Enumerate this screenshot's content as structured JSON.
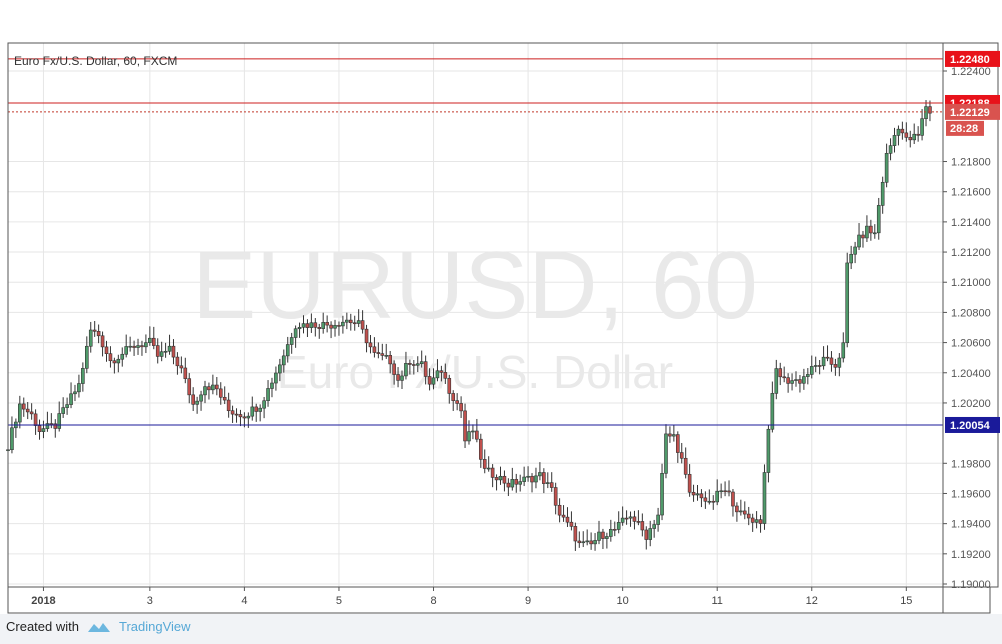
{
  "header": {
    "symbol_title": "Euro Fx/U.S. Dollar, 60, FXCM"
  },
  "watermark": {
    "symbol": "EURUSD, 60",
    "description": "Euro Fx/U.S. Dollar"
  },
  "footer": {
    "created_with": "Created with",
    "brand": "TradingView"
  },
  "colors": {
    "up": "#4f9a6a",
    "down": "#c0504d",
    "resistance": "#cc1f1f",
    "support": "#1a1a9a"
  },
  "chart_data": {
    "type": "candlestick",
    "title": "Euro Fx/U.S. Dollar, 60, FXCM",
    "ylim": [
      1.189,
      1.2258
    ],
    "y_ticks": [
      "1.22400",
      "1.21800",
      "1.21600",
      "1.21400",
      "1.21200",
      "1.21000",
      "1.20800",
      "1.20600",
      "1.20400",
      "1.20200",
      "1.19800",
      "1.19600",
      "1.19400",
      "1.19200",
      "1.19000"
    ],
    "y_tick_values": [
      1.224,
      1.218,
      1.216,
      1.214,
      1.212,
      1.21,
      1.208,
      1.206,
      1.204,
      1.202,
      1.198,
      1.196,
      1.194,
      1.192,
      1.19
    ],
    "x_ticks": [
      {
        "label": "2018",
        "hour": 9
      },
      {
        "label": "3",
        "hour": 36
      },
      {
        "label": "4",
        "hour": 60
      },
      {
        "label": "5",
        "hour": 84
      },
      {
        "label": "8",
        "hour": 108
      },
      {
        "label": "9",
        "hour": 132
      },
      {
        "label": "10",
        "hour": 156
      },
      {
        "label": "11",
        "hour": 180
      },
      {
        "label": "12",
        "hour": 204
      },
      {
        "label": "15",
        "hour": 228
      }
    ],
    "close_path": [
      [
        0,
        1.1992
      ],
      [
        3,
        1.2019
      ],
      [
        6,
        1.2012
      ],
      [
        8,
        1.2002
      ],
      [
        12,
        1.2005
      ],
      [
        14,
        1.2015
      ],
      [
        18,
        1.2032
      ],
      [
        21,
        1.2068
      ],
      [
        23,
        1.2065
      ],
      [
        26,
        1.2048
      ],
      [
        28,
        1.2051
      ],
      [
        32,
        1.2058
      ],
      [
        36,
        1.206
      ],
      [
        38,
        1.2051
      ],
      [
        41,
        1.2055
      ],
      [
        44,
        1.2042
      ],
      [
        47,
        1.2019
      ],
      [
        50,
        1.2032
      ],
      [
        53,
        1.2029
      ],
      [
        56,
        1.2015
      ],
      [
        60,
        1.2012
      ],
      [
        64,
        1.2019
      ],
      [
        66,
        1.2029
      ],
      [
        70,
        1.2052
      ],
      [
        73,
        1.2072
      ],
      [
        77,
        1.2072
      ],
      [
        82,
        1.2072
      ],
      [
        86,
        1.2075
      ],
      [
        89,
        1.2072
      ],
      [
        93,
        1.2052
      ],
      [
        97,
        1.2048
      ],
      [
        99,
        1.2035
      ],
      [
        102,
        1.2048
      ],
      [
        105,
        1.2045
      ],
      [
        107,
        1.2032
      ],
      [
        110,
        1.2042
      ],
      [
        112,
        1.2029
      ],
      [
        115,
        1.2015
      ],
      [
        116,
        1.1995
      ],
      [
        118,
        1.2002
      ],
      [
        121,
        1.1975
      ],
      [
        124,
        1.1972
      ],
      [
        127,
        1.1966
      ],
      [
        131,
        1.1969
      ],
      [
        135,
        1.1972
      ],
      [
        138,
        1.1962
      ],
      [
        140,
        1.1946
      ],
      [
        143,
        1.1936
      ],
      [
        145,
        1.1926
      ],
      [
        148,
        1.1926
      ],
      [
        150,
        1.1932
      ],
      [
        154,
        1.1936
      ],
      [
        158,
        1.1946
      ],
      [
        162,
        1.1932
      ],
      [
        165,
        1.1946
      ],
      [
        167,
        1.1998
      ],
      [
        169,
        1.1998
      ],
      [
        171,
        1.1982
      ],
      [
        173,
        1.1959
      ],
      [
        176,
        1.1959
      ],
      [
        178,
        1.1952
      ],
      [
        181,
        1.1962
      ],
      [
        183,
        1.1959
      ],
      [
        186,
        1.1946
      ],
      [
        190,
        1.1942
      ],
      [
        191,
        1.1942
      ],
      [
        193,
        1.2005
      ],
      [
        195,
        1.2042
      ],
      [
        197,
        1.2035
      ],
      [
        201,
        1.2035
      ],
      [
        204,
        1.2042
      ],
      [
        207,
        1.2048
      ],
      [
        210,
        1.2045
      ],
      [
        212,
        1.2058
      ],
      [
        213,
        1.2111
      ],
      [
        215,
        1.2125
      ],
      [
        218,
        1.2135
      ],
      [
        220,
        1.2132
      ],
      [
        221,
        1.2151
      ],
      [
        223,
        1.2184
      ],
      [
        226,
        1.2204
      ],
      [
        228,
        1.2194
      ],
      [
        231,
        1.2197
      ],
      [
        233,
        1.2217
      ],
      [
        234,
        1.2213
      ]
    ],
    "levels": [
      {
        "label": "1.22480",
        "value": 1.2248,
        "kind": "resistance"
      },
      {
        "label": "1.22188",
        "value": 1.22188,
        "kind": "resistance"
      },
      {
        "label": "1.22129",
        "value": 1.22129,
        "kind": "last-price"
      },
      {
        "label": "1.20054",
        "value": 1.20054,
        "kind": "support"
      }
    ],
    "countdown": "28:28",
    "grid": true
  }
}
